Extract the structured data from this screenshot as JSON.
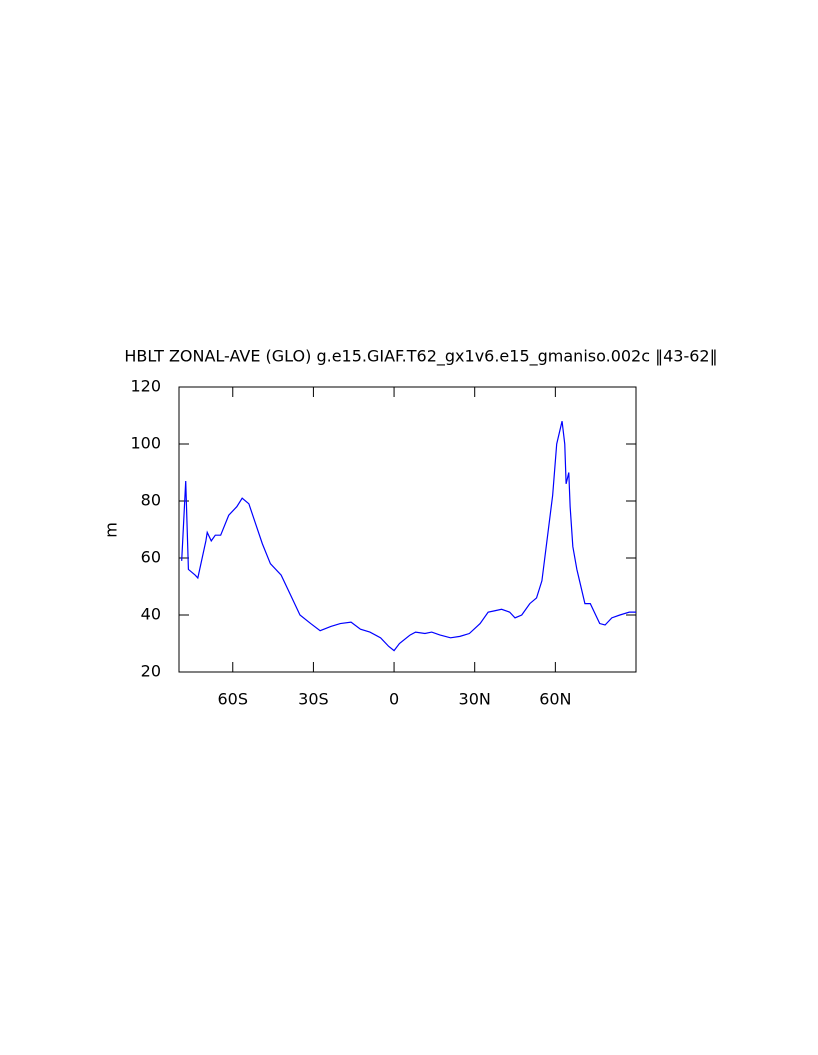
{
  "chart_data": {
    "type": "line",
    "title": "HBLT ZONAL-AVE (GLO) g.e15.GIAF.T62_gx1v6.e15_gmaniso.002c ‖43-62‖",
    "y_label": "m",
    "color": "#0000ff",
    "x": [
      -79,
      -77.5,
      -76.5,
      -74,
      -73,
      -70,
      -69.5,
      -68,
      -66.5,
      -64.5,
      -61.5,
      -58.5,
      -56.5,
      -54,
      -51.5,
      -49,
      -46,
      -42,
      -38.5,
      -35,
      -31,
      -27.5,
      -23.5,
      -20,
      -16,
      -12.5,
      -9,
      -5,
      -2,
      0,
      2,
      6,
      8,
      11.5,
      14,
      17,
      21,
      24.5,
      28,
      32,
      35,
      37.5,
      40,
      43,
      45,
      47.5,
      50.5,
      53,
      55,
      57,
      59,
      60.5,
      62.5,
      63.5,
      64,
      65,
      65.5,
      66.5,
      68,
      69,
      71,
      73,
      75,
      76.5,
      78.5,
      81,
      84,
      87.5,
      90
    ],
    "values": [
      59,
      87,
      56,
      54,
      53,
      66,
      69,
      66,
      68,
      68,
      75,
      78,
      81,
      79,
      72,
      65,
      58,
      54,
      47,
      40,
      37,
      34.5,
      36,
      37,
      37.5,
      35,
      34,
      32,
      29,
      27.5,
      30,
      33,
      34,
      33.5,
      34,
      33,
      32,
      32.5,
      33.5,
      37,
      41,
      41.5,
      42,
      41,
      39,
      40,
      44,
      46,
      52,
      67,
      82,
      100,
      108,
      100,
      86,
      90,
      78,
      64,
      56,
      52,
      44,
      44,
      40,
      37,
      36.5,
      39,
      40,
      41,
      41
    ],
    "xlim": [
      -80,
      90
    ],
    "ylim": [
      20,
      120
    ],
    "xticks": [
      {
        "value": -60,
        "label": "60S"
      },
      {
        "value": -30,
        "label": "30S"
      },
      0,
      {
        "value": 30,
        "label": "30N"
      },
      {
        "value": 60,
        "label": "60N"
      }
    ],
    "yticks": [
      20,
      40,
      60,
      80,
      100,
      120
    ]
  }
}
